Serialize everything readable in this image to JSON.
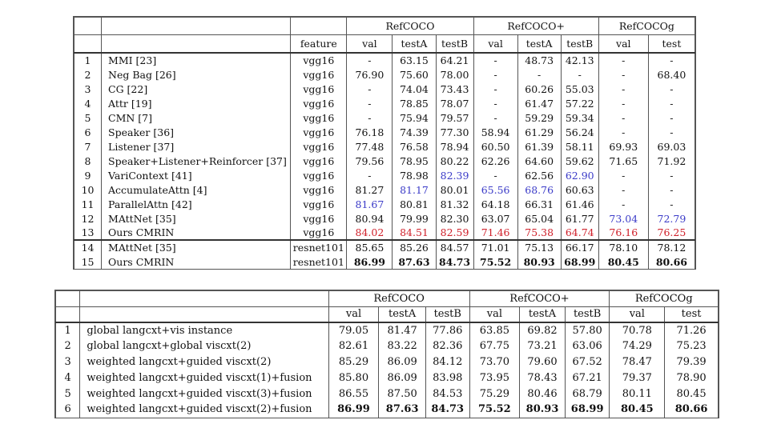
{
  "table1": {
    "groups": [
      "RefCOCO",
      "RefCOCO+",
      "RefCOCOg"
    ],
    "feature_header": "feature",
    "subheaders": [
      "val",
      "testA",
      "testB",
      "val",
      "testA",
      "testB",
      "val",
      "test"
    ],
    "rows": [
      {
        "idx": "1",
        "method": "MMI [23]",
        "feature": "vgg16",
        "vals": [
          "-",
          "63.15",
          "64.21",
          "-",
          "48.73",
          "42.13",
          "-",
          "-"
        ],
        "styles": [
          "",
          "",
          "",
          "",
          "",
          "",
          "",
          ""
        ]
      },
      {
        "idx": "2",
        "method": "Neg Bag [26]",
        "feature": "vgg16",
        "vals": [
          "76.90",
          "75.60",
          "78.00",
          "-",
          "-",
          "-",
          "-",
          "68.40"
        ],
        "styles": [
          "",
          "",
          "",
          "",
          "",
          "",
          "",
          ""
        ]
      },
      {
        "idx": "3",
        "method": "CG [22]",
        "feature": "vgg16",
        "vals": [
          "-",
          "74.04",
          "73.43",
          "-",
          "60.26",
          "55.03",
          "-",
          "-"
        ],
        "styles": [
          "",
          "",
          "",
          "",
          "",
          "",
          "",
          ""
        ]
      },
      {
        "idx": "4",
        "method": "Attr [19]",
        "feature": "vgg16",
        "vals": [
          "-",
          "78.85",
          "78.07",
          "-",
          "61.47",
          "57.22",
          "-",
          "-"
        ],
        "styles": [
          "",
          "",
          "",
          "",
          "",
          "",
          "",
          ""
        ]
      },
      {
        "idx": "5",
        "method": "CMN [7]",
        "feature": "vgg16",
        "vals": [
          "-",
          "75.94",
          "79.57",
          "-",
          "59.29",
          "59.34",
          "-",
          "-"
        ],
        "styles": [
          "",
          "",
          "",
          "",
          "",
          "",
          "",
          ""
        ]
      },
      {
        "idx": "6",
        "method": "Speaker [36]",
        "feature": "vgg16",
        "vals": [
          "76.18",
          "74.39",
          "77.30",
          "58.94",
          "61.29",
          "56.24",
          "-",
          "-"
        ],
        "styles": [
          "",
          "",
          "",
          "",
          "",
          "",
          "",
          ""
        ]
      },
      {
        "idx": "7",
        "method": "Listener [37]",
        "feature": "vgg16",
        "vals": [
          "77.48",
          "76.58",
          "78.94",
          "60.50",
          "61.39",
          "58.11",
          "69.93",
          "69.03"
        ],
        "styles": [
          "",
          "",
          "",
          "",
          "",
          "",
          "",
          ""
        ]
      },
      {
        "idx": "8",
        "method": "Speaker+Listener+Reinforcer [37]",
        "feature": "vgg16",
        "vals": [
          "79.56",
          "78.95",
          "80.22",
          "62.26",
          "64.60",
          "59.62",
          "71.65",
          "71.92"
        ],
        "styles": [
          "",
          "",
          "",
          "",
          "",
          "",
          "",
          ""
        ]
      },
      {
        "idx": "9",
        "method": "VariContext [41]",
        "feature": "vgg16",
        "vals": [
          "-",
          "78.98",
          "82.39",
          "-",
          "62.56",
          "62.90",
          "-",
          "-"
        ],
        "styles": [
          "",
          "",
          "blue",
          "",
          "",
          "blue",
          "",
          ""
        ]
      },
      {
        "idx": "10",
        "method": "AccumulateAttn [4]",
        "feature": "vgg16",
        "vals": [
          "81.27",
          "81.17",
          "80.01",
          "65.56",
          "68.76",
          "60.63",
          "-",
          "-"
        ],
        "styles": [
          "",
          "blue",
          "",
          "blue",
          "blue",
          "",
          "",
          ""
        ]
      },
      {
        "idx": "11",
        "method": "ParallelAttn [42]",
        "feature": "vgg16",
        "vals": [
          "81.67",
          "80.81",
          "81.32",
          "64.18",
          "66.31",
          "61.46",
          "-",
          "-"
        ],
        "styles": [
          "blue",
          "",
          "",
          "",
          "",
          "",
          "",
          ""
        ]
      },
      {
        "idx": "12",
        "method": "MAttNet [35]",
        "feature": "vgg16",
        "vals": [
          "80.94",
          "79.99",
          "82.30",
          "63.07",
          "65.04",
          "61.77",
          "73.04",
          "72.79"
        ],
        "styles": [
          "",
          "",
          "",
          "",
          "",
          "",
          "blue",
          "blue"
        ]
      },
      {
        "idx": "13",
        "method": "Ours CMRIN",
        "feature": "vgg16",
        "vals": [
          "84.02",
          "84.51",
          "82.59",
          "71.46",
          "75.38",
          "64.74",
          "76.16",
          "76.25"
        ],
        "styles": [
          "red",
          "red",
          "red",
          "red",
          "red",
          "red",
          "red",
          "red"
        ]
      },
      {
        "idx": "14",
        "method": "MAttNet [35]",
        "feature": "resnet101",
        "vals": [
          "85.65",
          "85.26",
          "84.57",
          "71.01",
          "75.13",
          "66.17",
          "78.10",
          "78.12"
        ],
        "styles": [
          "",
          "",
          "",
          "",
          "",
          "",
          "",
          ""
        ]
      },
      {
        "idx": "15",
        "method": "Ours CMRIN",
        "feature": "resnet101",
        "vals": [
          "86.99",
          "87.63",
          "84.73",
          "75.52",
          "80.93",
          "68.99",
          "80.45",
          "80.66"
        ],
        "styles": [
          "bold",
          "bold",
          "bold",
          "bold",
          "bold",
          "bold",
          "bold",
          "bold"
        ]
      }
    ]
  },
  "table2": {
    "groups": [
      "RefCOCO",
      "RefCOCO+",
      "RefCOCOg"
    ],
    "subheaders": [
      "val",
      "testA",
      "testB",
      "val",
      "testA",
      "testB",
      "val",
      "test"
    ],
    "rows": [
      {
        "idx": "1",
        "method": "global langcxt+vis instance",
        "vals": [
          "79.05",
          "81.47",
          "77.86",
          "63.85",
          "69.82",
          "57.80",
          "70.78",
          "71.26"
        ],
        "bold": false
      },
      {
        "idx": "2",
        "method": "global langcxt+global viscxt(2)",
        "vals": [
          "82.61",
          "83.22",
          "82.36",
          "67.75",
          "73.21",
          "63.06",
          "74.29",
          "75.23"
        ],
        "bold": false
      },
      {
        "idx": "3",
        "method": "weighted langcxt+guided viscxt(2)",
        "vals": [
          "85.29",
          "86.09",
          "84.12",
          "73.70",
          "79.60",
          "67.52",
          "78.47",
          "79.39"
        ],
        "bold": false
      },
      {
        "idx": "4",
        "method": "weighted langcxt+guided viscxt(1)+fusion",
        "vals": [
          "85.80",
          "86.09",
          "83.98",
          "73.95",
          "78.43",
          "67.21",
          "79.37",
          "78.90"
        ],
        "bold": false
      },
      {
        "idx": "5",
        "method": "weighted langcxt+guided viscxt(3)+fusion",
        "vals": [
          "86.55",
          "87.50",
          "84.53",
          "75.29",
          "80.46",
          "68.79",
          "80.11",
          "80.45"
        ],
        "bold": false
      },
      {
        "idx": "6",
        "method": "weighted langcxt+guided viscxt(2)+fusion",
        "vals": [
          "86.99",
          "87.63",
          "84.73",
          "75.52",
          "80.93",
          "68.99",
          "80.45",
          "80.66"
        ],
        "bold": true
      }
    ]
  }
}
